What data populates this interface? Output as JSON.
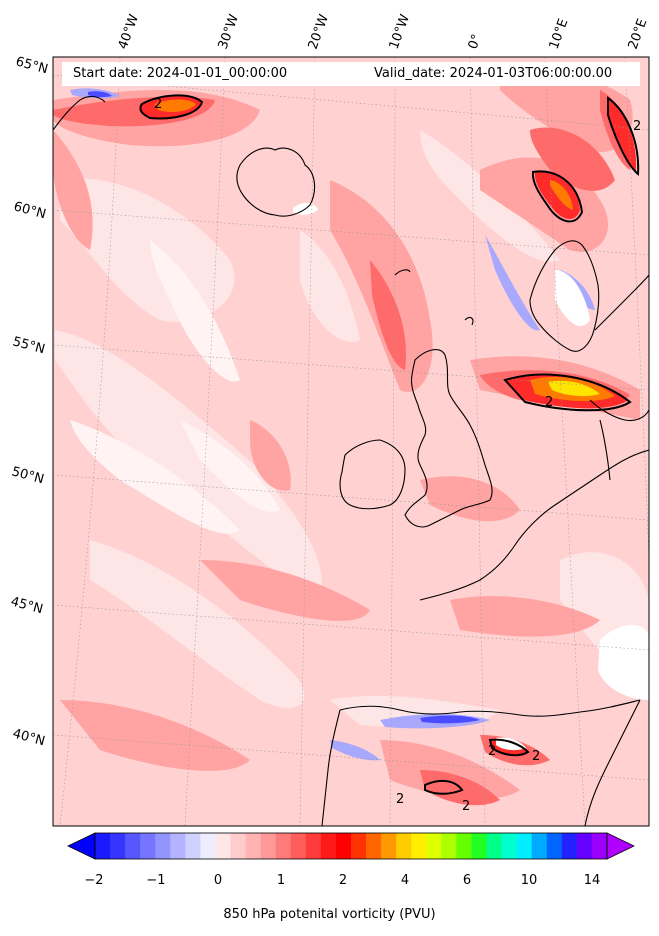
{
  "header": {
    "start_date": "Start date: 2024-01-01_00:00:00",
    "valid_date": "Valid_date: 2024-01-03T06:00:00.00"
  },
  "longitude_labels": [
    "40°W",
    "30°W",
    "20°W",
    "10°W",
    "0°",
    "10°E",
    "20°E"
  ],
  "latitude_labels": [
    "65°N",
    "60°N",
    "55°N",
    "50°N",
    "45°N",
    "40°N"
  ],
  "contour_label": "2",
  "colorbar": {
    "label": "850 hPa potenital vorticity (PVU)",
    "ticks": [
      "−2",
      "−1",
      "0",
      "1",
      "2",
      "4",
      "6",
      "10",
      "14"
    ],
    "colors": [
      "#1a1aff",
      "#3535ff",
      "#5757ff",
      "#7575ff",
      "#9494ff",
      "#b3b3ff",
      "#d1d1ff",
      "#ededff",
      "#ffe7e7",
      "#ffcccc",
      "#ffb3b3",
      "#ff9999",
      "#ff7a7a",
      "#ff5c5c",
      "#ff3b3b",
      "#ff1a1a",
      "#ff0000",
      "#ff3300",
      "#ff6600",
      "#ff9900",
      "#ffcc00",
      "#ffee00",
      "#ddff00",
      "#aaff00",
      "#66ff00",
      "#22ff22",
      "#00ff88",
      "#00ffcc",
      "#00eeff",
      "#00aaff",
      "#0066ff",
      "#2222ff",
      "#6600ff",
      "#9900ff"
    ],
    "under_color": "#0000ff",
    "over_color": "#b000ff"
  },
  "field_colors": {
    "background": "#ffd1d1",
    "light": "#ffe6e6",
    "pale": "#fff3f3",
    "mid": "#ffa3a3",
    "strong": "#ff6a6a",
    "red": "#ff2b2b",
    "orange": "#ff7a00",
    "yellow": "#ffe400",
    "blue": "#a8a8ff",
    "deep_blue": "#4b4bff"
  }
}
